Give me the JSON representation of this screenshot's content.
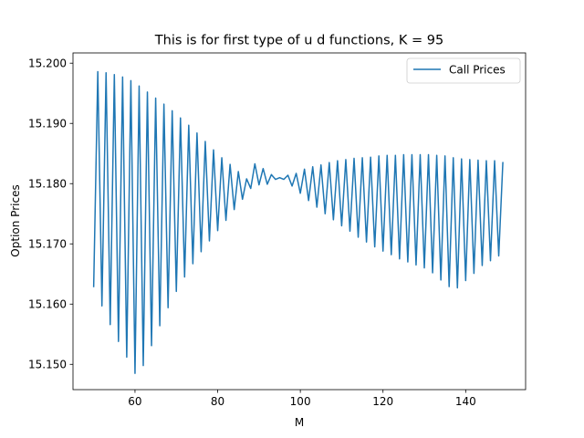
{
  "chart_data": {
    "type": "line",
    "title": "This is for first type of u d functions, K = 95",
    "xlabel": "M",
    "ylabel": "Option Prices",
    "xlim": [
      45,
      154.5
    ],
    "ylim": [
      15.1458,
      15.2017
    ],
    "xticks": [
      60,
      80,
      100,
      120,
      140
    ],
    "yticks": [
      15.15,
      15.16,
      15.17,
      15.18,
      15.19,
      15.2
    ],
    "ytick_labels": [
      "15.150",
      "15.160",
      "15.170",
      "15.180",
      "15.190",
      "15.200"
    ],
    "legend_position": "top-right",
    "series": [
      {
        "name": "Call Prices",
        "color": "#1f77b4",
        "x_start": 50,
        "x_step": 1,
        "values": [
          15.1628,
          15.1986,
          15.1597,
          15.1984,
          15.1566,
          15.1981,
          15.1538,
          15.1977,
          15.1512,
          15.1971,
          15.1485,
          15.1962,
          15.1498,
          15.1952,
          15.1531,
          15.1942,
          15.1564,
          15.1932,
          15.1594,
          15.1921,
          15.1621,
          15.1909,
          15.1645,
          15.1897,
          15.1667,
          15.1884,
          15.1687,
          15.187,
          15.1705,
          15.1856,
          15.1722,
          15.1843,
          15.1739,
          15.1832,
          15.1757,
          15.182,
          15.1774,
          15.1808,
          15.1792,
          15.1833,
          15.1798,
          15.1825,
          15.1799,
          15.1815,
          15.1807,
          15.181,
          15.1807,
          15.1814,
          15.1796,
          15.1817,
          15.1784,
          15.1824,
          15.1772,
          15.1828,
          15.1761,
          15.1831,
          15.175,
          15.1835,
          15.174,
          15.1838,
          15.173,
          15.184,
          15.1721,
          15.1842,
          15.1711,
          15.1843,
          15.1703,
          15.1844,
          15.1695,
          15.1846,
          15.1688,
          15.1847,
          15.1682,
          15.1847,
          15.1675,
          15.1848,
          15.167,
          15.1848,
          15.1665,
          15.1848,
          15.166,
          15.1848,
          15.1652,
          15.1847,
          15.164,
          15.1846,
          15.1629,
          15.1843,
          15.1627,
          15.1841,
          15.1639,
          15.184,
          15.1651,
          15.1839,
          15.1664,
          15.1838,
          15.1672,
          15.1838,
          15.168,
          15.1836
        ]
      }
    ]
  }
}
